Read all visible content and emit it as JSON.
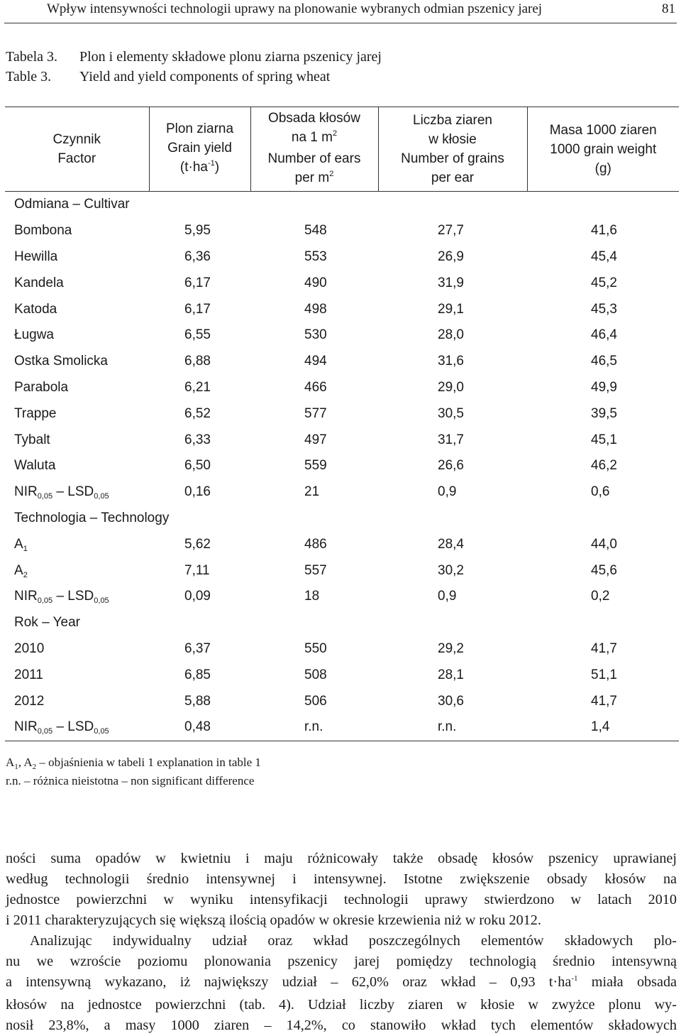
{
  "running_head": {
    "title": "Wpływ intensywności technologii uprawy na plonowanie wybranych odmian pszenicy jarej",
    "page_number": "81"
  },
  "caption": {
    "label_pl": "Tabela 3.",
    "title_pl": "Plon i elementy składowe plonu ziarna pszenicy jarej",
    "label_en": "Table 3.",
    "title_en": "Yield and yield components of spring wheat"
  },
  "table": {
    "headers": {
      "factor": [
        "Czynnik",
        "Factor"
      ],
      "yield": [
        "Plon ziarna",
        "Grain yield",
        "(t·ha",
        "-1",
        ")"
      ],
      "ears": [
        "Obsada kłosów",
        "na 1 m",
        "2",
        "Number of ears",
        "per m",
        "2"
      ],
      "grains": [
        "Liczba ziaren",
        "w kłosie",
        "Number of grains",
        "per ear"
      ],
      "tgw": [
        "Masa 1000 ziaren",
        "1000 grain weight",
        "(g)"
      ]
    },
    "sections": {
      "cultivar": "Odmiana – Cultivar",
      "technology": "Technologia – Technology",
      "year": "Rok – Year"
    },
    "lsd": {
      "nir": "NIR",
      "lsd": "LSD",
      "sub": "0,05",
      "dash": "–"
    },
    "cultivars": [
      [
        "Bombona",
        "5,95",
        "548",
        "27,7",
        "41,6"
      ],
      [
        "Hewilla",
        "6,36",
        "553",
        "26,9",
        "45,4"
      ],
      [
        "Kandela",
        "6,17",
        "490",
        "31,9",
        "45,2"
      ],
      [
        "Katoda",
        "6,17",
        "498",
        "29,1",
        "45,3"
      ],
      [
        "Ługwa",
        "6,55",
        "530",
        "28,0",
        "46,4"
      ],
      [
        "Ostka Smolicka",
        "6,88",
        "494",
        "31,6",
        "46,5"
      ],
      [
        "Parabola",
        "6,21",
        "466",
        "29,0",
        "49,9"
      ],
      [
        "Trappe",
        "6,52",
        "577",
        "30,5",
        "39,5"
      ],
      [
        "Tybalt",
        "6,33",
        "497",
        "31,7",
        "45,1"
      ],
      [
        "Waluta",
        "6,50",
        "559",
        "26,6",
        "46,2"
      ]
    ],
    "cultivar_lsd": [
      "0,16",
      "21",
      "0,9",
      "0,6"
    ],
    "technologies": [
      [
        "A",
        "1",
        "5,62",
        "486",
        "28,4",
        "44,0"
      ],
      [
        "A",
        "2",
        "7,11",
        "557",
        "30,2",
        "45,6"
      ]
    ],
    "technology_lsd": [
      "0,09",
      "18",
      "0,9",
      "0,2"
    ],
    "years": [
      [
        "2010",
        "6,37",
        "550",
        "29,2",
        "41,7"
      ],
      [
        "2011",
        "6,85",
        "508",
        "28,1",
        "51,1"
      ],
      [
        "2012",
        "5,88",
        "506",
        "30,6",
        "41,7"
      ]
    ],
    "year_lsd": [
      "0,48",
      "r.n.",
      "r.n.",
      "1,4"
    ]
  },
  "notes": {
    "note1_a1": "A",
    "note1_sub1": "1",
    "note1_sep": ", A",
    "note1_sub2": "2",
    "note1_text": " – objaśnienia w tabeli 1 explanation in table 1",
    "note2": "r.n. – różnica nieistotna – non significant difference"
  },
  "body": {
    "p1_lines": [
      "ności suma opadów w kwietniu i maju różnicowały także obsadę kłosów pszenicy uprawianej",
      "według technologii średnio intensywnej i intensywnej. Istotne zwiększenie obsady kłosów na",
      "jednostce powierzchni w wyniku intensyfikacji technologii uprawy stwierdzono w latach 2010",
      "i 2011 charakteryzujących się większą ilością opadów w okresie krzewienia niż w roku 2012."
    ],
    "p2_lines": [
      "Analizując indywidualny udział oraz wkład poszczególnych elementów składowych plo-",
      "nu we wzroście poziomu plonowania pszenicy jarej pomiędzy technologią średnio intensywną",
      "a intensywną wykazano, iż największy udział – 62,0% oraz wkład – 0,93 t·ha",
      "-1",
      " miała obsada",
      "kłosów na jednostce powierzchni (tab. 4). Udział liczby ziaren w kłosie w zwyżce plonu wy-",
      "nosił 23,8%, a masy 1000 ziaren – 14,2%, co stanowiło wkład tych elementów składowych"
    ]
  }
}
